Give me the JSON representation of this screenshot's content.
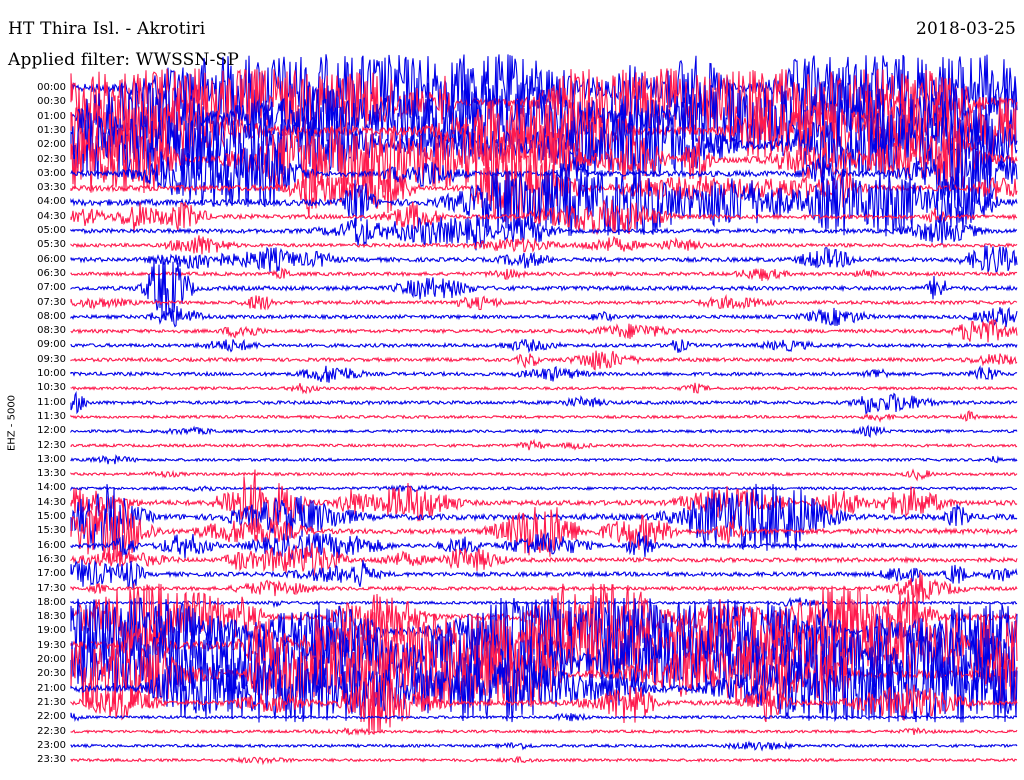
{
  "header": {
    "title": "HT Thira Isl. - Akrotiri",
    "date": "2018-03-25",
    "filter": "Applied filter: WWSSN-SP"
  },
  "ylabel": "EHZ - 5000",
  "colors": {
    "even_rows": "#0000e8",
    "odd_rows": "#ff1a4d"
  },
  "chart_data": {
    "type": "line",
    "description_kind": "helicorder",
    "y_tick_labels": [
      "00:00",
      "00:30",
      "01:00",
      "01:30",
      "02:00",
      "02:30",
      "03:00",
      "03:30",
      "04:00",
      "04:30",
      "05:00",
      "05:30",
      "06:00",
      "06:30",
      "07:00",
      "07:30",
      "08:00",
      "08:30",
      "09:00",
      "09:30",
      "10:00",
      "10:30",
      "11:00",
      "11:30",
      "12:00",
      "12:30",
      "13:00",
      "13:30",
      "14:00",
      "14:30",
      "15:00",
      "15:30",
      "16:00",
      "16:30",
      "17:00",
      "17:30",
      "18:00",
      "18:30",
      "19:00",
      "19:30",
      "20:00",
      "20:30",
      "21:00",
      "21:30",
      "22:00",
      "22:30",
      "23:00",
      "23:30"
    ],
    "ylabel": "EHZ - 5000",
    "activity": [
      9,
      9,
      9,
      9,
      8,
      7,
      5,
      5,
      6,
      3,
      3,
      2,
      3,
      2,
      3,
      2,
      2,
      2,
      2,
      2,
      2,
      1,
      2,
      1,
      1,
      1,
      1,
      1,
      1,
      4,
      5,
      4,
      3,
      3,
      3,
      2,
      1,
      6,
      8,
      9,
      9,
      8,
      7,
      4,
      1,
      1,
      1,
      1
    ]
  }
}
